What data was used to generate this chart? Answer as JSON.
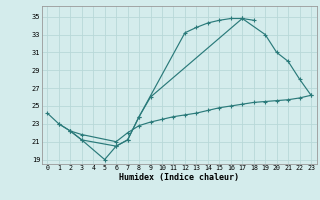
{
  "xlabel": "Humidex (Indice chaleur)",
  "background_color": "#d4ecec",
  "grid_color": "#b8d8d8",
  "line_color": "#2a7a7a",
  "xlim": [
    -0.5,
    23.5
  ],
  "ylim": [
    18.5,
    36.2
  ],
  "xticks": [
    0,
    1,
    2,
    3,
    4,
    5,
    6,
    7,
    8,
    9,
    10,
    11,
    12,
    13,
    14,
    15,
    16,
    17,
    18,
    19,
    20,
    21,
    22,
    23
  ],
  "yticks": [
    19,
    21,
    23,
    25,
    27,
    29,
    31,
    33,
    35
  ],
  "curve1": {
    "x": [
      0,
      1,
      2,
      3,
      5,
      6,
      7,
      8,
      12,
      13,
      14,
      15,
      16,
      17,
      18
    ],
    "y": [
      24.2,
      23.0,
      22.2,
      21.2,
      19.0,
      20.5,
      21.2,
      23.8,
      33.2,
      33.8,
      34.3,
      34.6,
      34.8,
      34.8,
      34.6
    ]
  },
  "curve2": {
    "x": [
      2,
      3,
      6,
      7,
      8,
      9,
      17,
      19,
      20,
      21,
      22,
      23
    ],
    "y": [
      22.2,
      21.2,
      20.5,
      21.2,
      23.8,
      26.0,
      34.8,
      33.0,
      31.0,
      30.0,
      28.0,
      26.2
    ]
  },
  "curve3": {
    "x": [
      1,
      2,
      3,
      6,
      7,
      8,
      9,
      10,
      11,
      12,
      13,
      14,
      15,
      16,
      17,
      18,
      19,
      20,
      21,
      22,
      23
    ],
    "y": [
      23.0,
      22.2,
      21.8,
      21.0,
      22.0,
      22.8,
      23.2,
      23.5,
      23.8,
      24.0,
      24.2,
      24.5,
      24.8,
      25.0,
      25.2,
      25.4,
      25.5,
      25.6,
      25.7,
      25.9,
      26.2
    ]
  }
}
